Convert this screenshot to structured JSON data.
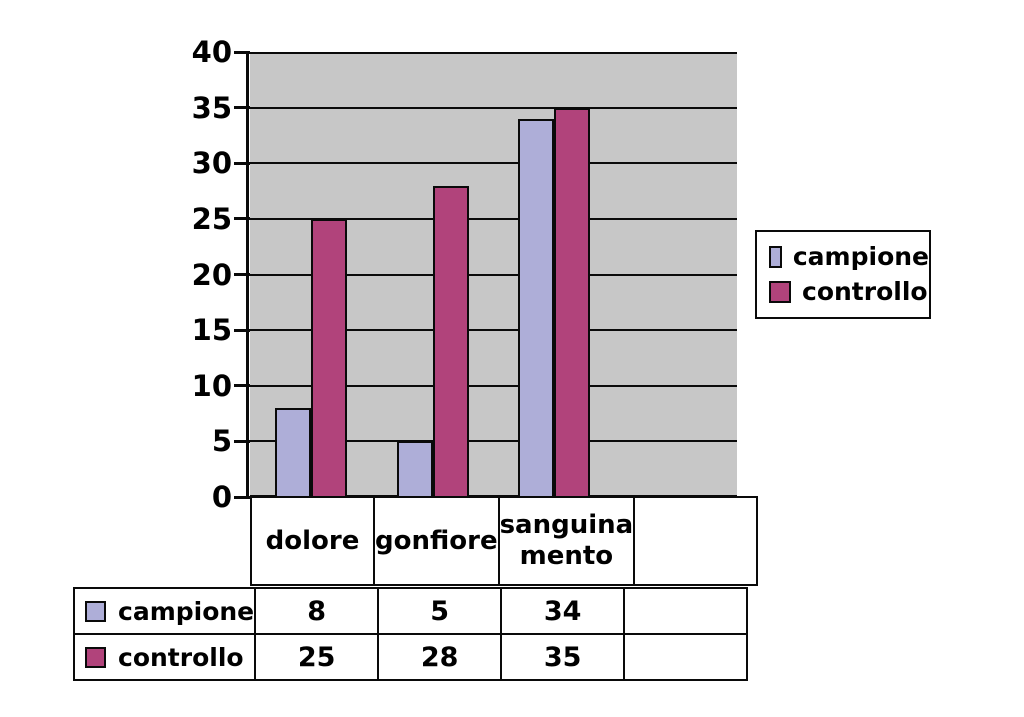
{
  "chart_data": {
    "type": "bar",
    "title": "",
    "categories": [
      "dolore",
      "gonfiore",
      "sanguinamento",
      ""
    ],
    "series": [
      {
        "name": "campione",
        "color": "#AEAED8",
        "values": [
          8,
          5,
          34,
          null
        ]
      },
      {
        "name": "controllo",
        "color": "#B1437B",
        "values": [
          25,
          28,
          35,
          null
        ]
      }
    ],
    "ylim": [
      0,
      40
    ],
    "yticks": [
      0,
      5,
      10,
      15,
      20,
      25,
      30,
      35,
      40
    ],
    "grid": true,
    "plot_background": "#C7C7C7",
    "legend_position": "right"
  },
  "legend": {
    "items": [
      {
        "label": "campione",
        "color": "#AEAED8"
      },
      {
        "label": "controllo",
        "color": "#B1437B"
      }
    ]
  },
  "data_table": {
    "column_headers": [
      "dolore",
      "gonfiore",
      "sanguina\nmento",
      ""
    ],
    "rows": [
      {
        "label": "campione",
        "swatch_color": "#AEAED8",
        "values": [
          "8",
          "5",
          "34",
          ""
        ]
      },
      {
        "label": "controllo",
        "swatch_color": "#B1437B",
        "values": [
          "25",
          "28",
          "35",
          ""
        ]
      }
    ]
  }
}
